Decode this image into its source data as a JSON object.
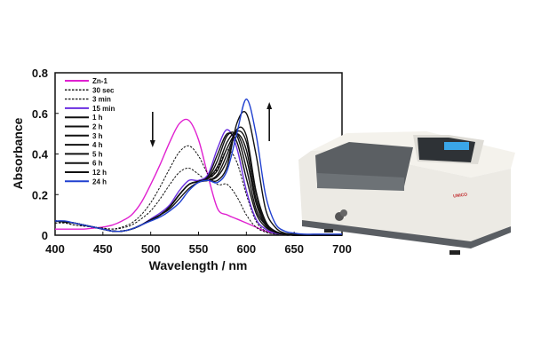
{
  "chart_data": {
    "type": "line",
    "title": "",
    "xlabel": "Wavelength / nm",
    "ylabel": "Absorbance",
    "xlim": [
      400,
      700
    ],
    "ylim": [
      0,
      0.8
    ],
    "xticks": [
      "400",
      "450",
      "500",
      "550",
      "600",
      "650",
      "700"
    ],
    "yticks": [
      "0",
      "0.2",
      "0.4",
      "0.6",
      "0.8"
    ],
    "legend_position": "top-left",
    "annotations": {
      "arrow_down_at_nm": 502,
      "arrow_up_at_nm": 624
    },
    "x": [
      400,
      410,
      420,
      430,
      440,
      450,
      460,
      470,
      480,
      490,
      500,
      510,
      520,
      530,
      540,
      550,
      560,
      570,
      580,
      590,
      600,
      610,
      620,
      630,
      640,
      650,
      660,
      670,
      680,
      690,
      700
    ],
    "series": [
      {
        "name": "Zn-1",
        "color": "#e020d0",
        "style": "solid",
        "values": [
          0.03,
          0.03,
          0.03,
          0.03,
          0.035,
          0.04,
          0.05,
          0.07,
          0.1,
          0.16,
          0.25,
          0.35,
          0.46,
          0.55,
          0.565,
          0.47,
          0.29,
          0.13,
          0.1,
          0.08,
          0.06,
          0.04,
          0.02,
          0.01,
          0.005,
          0,
          0,
          0,
          0,
          0,
          0
        ]
      },
      {
        "name": "30 sec",
        "color": "#111111",
        "style": "dashed",
        "values": [
          0.06,
          0.06,
          0.05,
          0.045,
          0.04,
          0.035,
          0.03,
          0.04,
          0.06,
          0.1,
          0.16,
          0.24,
          0.33,
          0.41,
          0.44,
          0.39,
          0.3,
          0.25,
          0.25,
          0.19,
          0.1,
          0.04,
          0.015,
          0.005,
          0,
          0,
          0,
          0,
          0,
          0,
          0
        ]
      },
      {
        "name": "3 min",
        "color": "#111111",
        "style": "dashed",
        "values": [
          0.06,
          0.06,
          0.05,
          0.045,
          0.04,
          0.035,
          0.03,
          0.035,
          0.05,
          0.08,
          0.12,
          0.18,
          0.25,
          0.31,
          0.33,
          0.3,
          0.27,
          0.33,
          0.42,
          0.36,
          0.2,
          0.07,
          0.02,
          0.005,
          0,
          0,
          0,
          0,
          0,
          0,
          0
        ]
      },
      {
        "name": "15 min",
        "color": "#6a2ee0",
        "style": "solid",
        "values": [
          0.07,
          0.065,
          0.06,
          0.05,
          0.04,
          0.03,
          0.02,
          0.02,
          0.03,
          0.05,
          0.08,
          0.11,
          0.15,
          0.22,
          0.27,
          0.27,
          0.3,
          0.43,
          0.52,
          0.43,
          0.22,
          0.08,
          0.03,
          0.01,
          0.005,
          0,
          0,
          0,
          0,
          0,
          0
        ]
      },
      {
        "name": "1 h",
        "color": "#111111",
        "style": "solid",
        "values": [
          0.07,
          0.065,
          0.06,
          0.05,
          0.04,
          0.03,
          0.02,
          0.02,
          0.03,
          0.05,
          0.075,
          0.1,
          0.14,
          0.2,
          0.25,
          0.265,
          0.29,
          0.4,
          0.5,
          0.46,
          0.28,
          0.11,
          0.04,
          0.015,
          0.005,
          0,
          0,
          0,
          0,
          0,
          0
        ]
      },
      {
        "name": "2 h",
        "color": "#111111",
        "style": "solid",
        "values": [
          0.07,
          0.065,
          0.06,
          0.05,
          0.04,
          0.03,
          0.02,
          0.02,
          0.03,
          0.05,
          0.075,
          0.1,
          0.14,
          0.2,
          0.25,
          0.265,
          0.28,
          0.37,
          0.49,
          0.49,
          0.33,
          0.13,
          0.05,
          0.015,
          0.005,
          0,
          0,
          0,
          0,
          0,
          0
        ]
      },
      {
        "name": "3 h",
        "color": "#111111",
        "style": "solid",
        "values": [
          0.07,
          0.065,
          0.06,
          0.05,
          0.04,
          0.03,
          0.02,
          0.02,
          0.03,
          0.05,
          0.075,
          0.1,
          0.14,
          0.2,
          0.25,
          0.265,
          0.28,
          0.34,
          0.46,
          0.5,
          0.38,
          0.16,
          0.05,
          0.02,
          0.005,
          0,
          0,
          0,
          0,
          0,
          0
        ]
      },
      {
        "name": "4 h",
        "color": "#111111",
        "style": "solid",
        "values": [
          0.07,
          0.065,
          0.06,
          0.05,
          0.04,
          0.03,
          0.02,
          0.02,
          0.03,
          0.05,
          0.075,
          0.1,
          0.14,
          0.2,
          0.25,
          0.265,
          0.28,
          0.32,
          0.43,
          0.5,
          0.42,
          0.18,
          0.06,
          0.02,
          0.005,
          0,
          0,
          0,
          0,
          0,
          0
        ]
      },
      {
        "name": "5 h",
        "color": "#111111",
        "style": "solid",
        "values": [
          0.07,
          0.065,
          0.06,
          0.05,
          0.04,
          0.03,
          0.02,
          0.02,
          0.03,
          0.05,
          0.075,
          0.1,
          0.14,
          0.2,
          0.25,
          0.265,
          0.27,
          0.3,
          0.4,
          0.51,
          0.46,
          0.21,
          0.06,
          0.02,
          0.005,
          0,
          0,
          0,
          0,
          0,
          0
        ]
      },
      {
        "name": "6 h",
        "color": "#111111",
        "style": "solid",
        "values": [
          0.07,
          0.065,
          0.06,
          0.05,
          0.04,
          0.03,
          0.02,
          0.02,
          0.03,
          0.05,
          0.075,
          0.1,
          0.14,
          0.2,
          0.25,
          0.265,
          0.27,
          0.29,
          0.37,
          0.52,
          0.49,
          0.22,
          0.07,
          0.02,
          0.005,
          0,
          0,
          0,
          0,
          0,
          0
        ]
      },
      {
        "name": "12 h",
        "color": "#111111",
        "style": "solid",
        "values": [
          0.07,
          0.065,
          0.06,
          0.05,
          0.04,
          0.03,
          0.02,
          0.02,
          0.03,
          0.05,
          0.075,
          0.1,
          0.13,
          0.18,
          0.23,
          0.26,
          0.27,
          0.27,
          0.34,
          0.55,
          0.6,
          0.4,
          0.13,
          0.04,
          0.01,
          0.005,
          0,
          0,
          0,
          0,
          0
        ]
      },
      {
        "name": "24 h",
        "color": "#2040d0",
        "style": "solid",
        "values": [
          0.07,
          0.07,
          0.06,
          0.05,
          0.04,
          0.03,
          0.02,
          0.02,
          0.03,
          0.05,
          0.07,
          0.09,
          0.12,
          0.16,
          0.22,
          0.26,
          0.27,
          0.26,
          0.32,
          0.5,
          0.67,
          0.5,
          0.2,
          0.06,
          0.02,
          0.01,
          0.005,
          0.005,
          0.005,
          0.005,
          0.005
        ]
      }
    ]
  },
  "instrument": {
    "brand_logo": "UNICO"
  }
}
